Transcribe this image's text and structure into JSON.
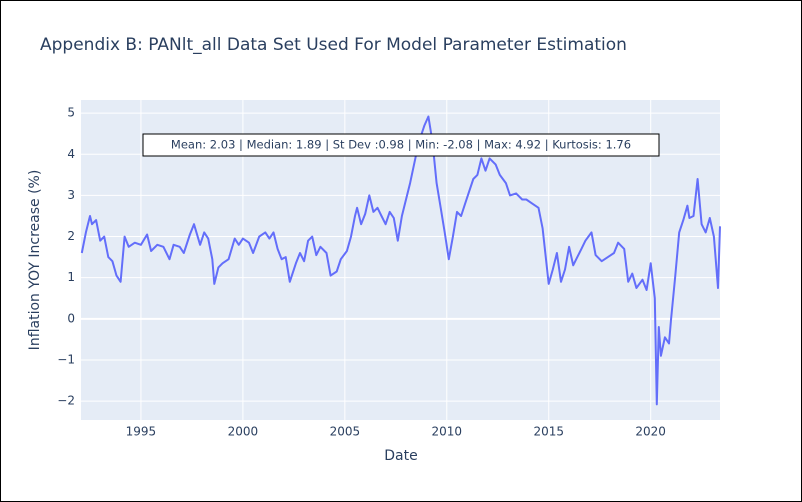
{
  "chart_data": {
    "type": "line",
    "title": "Appendix B: PANlt_all Data Set Used For Model Parameter Estimation",
    "x_label": "Date",
    "y_label": "Inflation YOY Increase (%)",
    "annotation": "Mean: 2.03 | Median: 1.89 | St Dev :0.98 | Min: -2.08 | Max: 4.92 | Kurtosis: 1.76",
    "x": [
      1992.1,
      1992.3,
      1992.5,
      1992.6,
      1992.8,
      1993.0,
      1993.2,
      1993.4,
      1993.6,
      1993.8,
      1994.0,
      1994.2,
      1994.4,
      1994.7,
      1995.0,
      1995.3,
      1995.5,
      1995.8,
      1996.1,
      1996.4,
      1996.6,
      1996.9,
      1997.1,
      1997.4,
      1997.6,
      1997.9,
      1998.1,
      1998.3,
      1998.5,
      1998.6,
      1998.8,
      1999.0,
      1999.3,
      1999.6,
      1999.8,
      2000.0,
      2000.3,
      2000.5,
      2000.8,
      2001.1,
      2001.3,
      2001.5,
      2001.7,
      2001.9,
      2002.1,
      2002.3,
      2002.6,
      2002.8,
      2003.0,
      2003.2,
      2003.4,
      2003.6,
      2003.8,
      2004.1,
      2004.3,
      2004.6,
      2004.8,
      2005.1,
      2005.3,
      2005.5,
      2005.6,
      2005.8,
      2006.0,
      2006.2,
      2006.4,
      2006.6,
      2006.8,
      2007.0,
      2007.2,
      2007.4,
      2007.6,
      2007.8,
      2008.0,
      2008.2,
      2008.5,
      2008.7,
      2008.9,
      2009.1,
      2009.3,
      2009.5,
      2009.7,
      2009.9,
      2010.1,
      2010.3,
      2010.5,
      2010.7,
      2010.9,
      2011.1,
      2011.3,
      2011.5,
      2011.7,
      2011.9,
      2012.1,
      2012.4,
      2012.6,
      2012.9,
      2013.1,
      2013.4,
      2013.7,
      2013.9,
      2014.2,
      2014.5,
      2014.7,
      2015.0,
      2015.2,
      2015.4,
      2015.6,
      2015.8,
      2016.0,
      2016.2,
      2016.4,
      2016.6,
      2016.8,
      2017.1,
      2017.3,
      2017.6,
      2017.9,
      2018.2,
      2018.4,
      2018.7,
      2018.9,
      2019.1,
      2019.3,
      2019.6,
      2019.8,
      2020.0,
      2020.2,
      2020.3,
      2020.4,
      2020.5,
      2020.7,
      2020.9,
      2021.0,
      2021.2,
      2021.4,
      2021.6,
      2021.8,
      2021.9,
      2022.1,
      2022.3,
      2022.5,
      2022.7,
      2022.9,
      2023.1,
      2023.3,
      2023.4
    ],
    "series": [
      {
        "color": "#636efa",
        "values": [
          1.6,
          2.1,
          2.5,
          2.3,
          2.4,
          1.9,
          2.0,
          1.5,
          1.4,
          1.05,
          0.9,
          2.0,
          1.75,
          1.85,
          1.8,
          2.05,
          1.65,
          1.8,
          1.75,
          1.45,
          1.8,
          1.75,
          1.6,
          2.05,
          2.3,
          1.8,
          2.1,
          1.95,
          1.45,
          0.85,
          1.25,
          1.35,
          1.45,
          1.95,
          1.8,
          1.95,
          1.85,
          1.6,
          2.0,
          2.1,
          1.95,
          2.1,
          1.7,
          1.45,
          1.5,
          0.9,
          1.35,
          1.6,
          1.4,
          1.9,
          2.0,
          1.55,
          1.75,
          1.6,
          1.05,
          1.15,
          1.45,
          1.65,
          2.0,
          2.5,
          2.7,
          2.3,
          2.55,
          3.0,
          2.6,
          2.7,
          2.5,
          2.3,
          2.6,
          2.45,
          1.9,
          2.5,
          2.9,
          3.3,
          4.0,
          4.4,
          4.7,
          4.92,
          4.3,
          3.3,
          2.7,
          2.1,
          1.45,
          2.0,
          2.6,
          2.5,
          2.8,
          3.1,
          3.4,
          3.5,
          3.9,
          3.6,
          3.9,
          3.75,
          3.5,
          3.3,
          3.0,
          3.05,
          2.9,
          2.9,
          2.8,
          2.7,
          2.2,
          0.85,
          1.2,
          1.6,
          0.9,
          1.2,
          1.75,
          1.3,
          1.5,
          1.7,
          1.9,
          2.1,
          1.55,
          1.4,
          1.5,
          1.6,
          1.85,
          1.7,
          0.9,
          1.1,
          0.75,
          0.95,
          0.7,
          1.35,
          0.5,
          -2.08,
          -0.2,
          -0.9,
          -0.45,
          -0.6,
          0.0,
          1.0,
          2.1,
          2.4,
          2.75,
          2.45,
          2.5,
          3.4,
          2.3,
          2.1,
          2.45,
          2.0,
          0.75,
          2.25
        ]
      }
    ],
    "xlim": [
      1992.06,
      2023.4
    ],
    "xticks": [
      1995,
      2000,
      2005,
      2010,
      2015,
      2020
    ],
    "ylim": [
      -2.46,
      5.32
    ],
    "yticks": [
      {
        "value": -2,
        "label": "−2"
      },
      {
        "value": -1,
        "label": "−1"
      },
      0,
      1,
      2,
      3,
      4,
      5
    ],
    "grid": true
  }
}
